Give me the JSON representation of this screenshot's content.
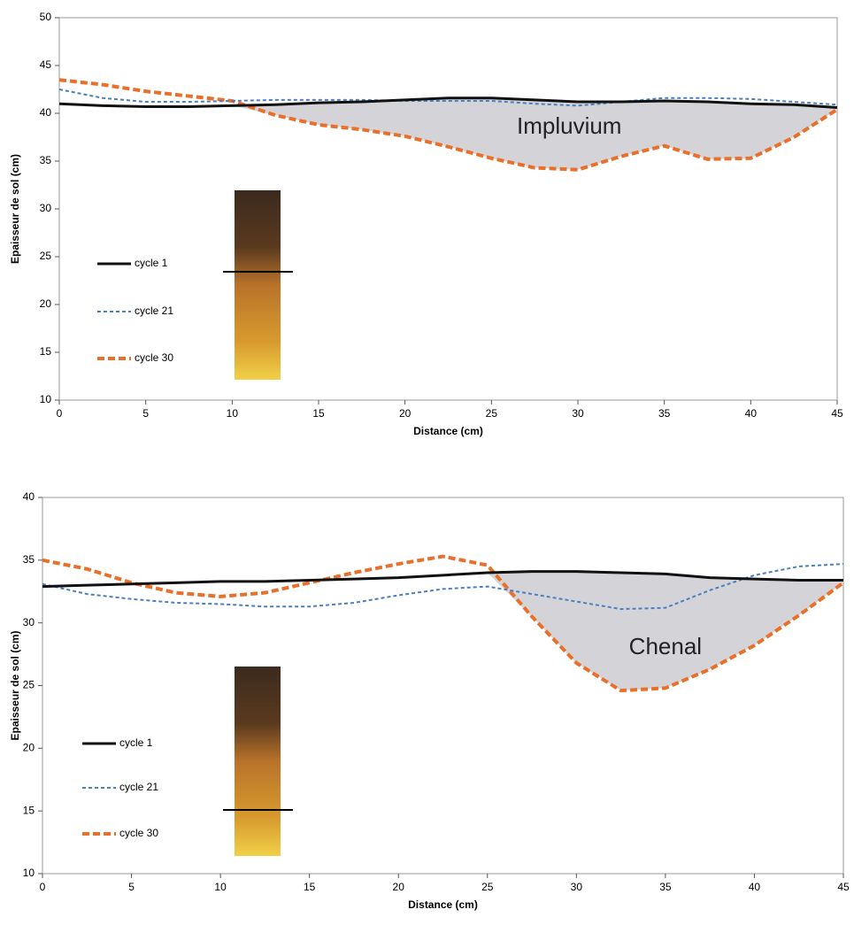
{
  "chart_data": [
    {
      "type": "line",
      "ylabel": "Epaisseur de sol (cm)",
      "xlabel": "Distance (cm)",
      "x": [
        0,
        2.5,
        5,
        7.5,
        10,
        12.5,
        15,
        17.5,
        20,
        22.5,
        25,
        27.5,
        30,
        32.5,
        35,
        37.5,
        40,
        42.5,
        45
      ],
      "series": [
        {
          "name": "cycle 1",
          "color": "#111111",
          "style": "solid",
          "values": [
            41,
            40.8,
            40.7,
            40.7,
            40.8,
            40.9,
            41.1,
            41.2,
            41.4,
            41.6,
            41.6,
            41.4,
            41.2,
            41.2,
            41.3,
            41.2,
            41,
            40.9,
            40.6
          ]
        },
        {
          "name": "cycle 21",
          "color": "#4a7fc1",
          "style": "dotted",
          "values": [
            42.5,
            41.6,
            41.2,
            41.2,
            41.3,
            41.4,
            41.4,
            41.4,
            41.3,
            41.3,
            41.3,
            41,
            40.8,
            41.2,
            41.6,
            41.6,
            41.5,
            41.2,
            40.9
          ]
        },
        {
          "name": "cycle 30",
          "color": "#e8702a",
          "style": "dashed",
          "values": [
            43.5,
            43,
            42.3,
            41.8,
            41.3,
            39.8,
            38.8,
            38.3,
            37.6,
            36.5,
            35.3,
            34.3,
            34.1,
            35.5,
            36.6,
            35.2,
            35.3,
            37.5,
            40.4
          ]
        }
      ],
      "annotation": "Impluvium",
      "xlim": [
        0,
        45
      ],
      "xticks": [
        0,
        5,
        10,
        15,
        20,
        25,
        30,
        35,
        40,
        45
      ],
      "ylim": [
        10,
        50
      ],
      "yticks": [
        10,
        15,
        20,
        25,
        30,
        35,
        40,
        45,
        50
      ],
      "legend": "left"
    },
    {
      "type": "line",
      "ylabel": "Epaisseur de sol (cm)",
      "xlabel": "Distance (cm)",
      "x": [
        0,
        2.5,
        5,
        7.5,
        10,
        12.5,
        15,
        17.5,
        20,
        22.5,
        25,
        27.5,
        30,
        32.5,
        35,
        37.5,
        40,
        42.5,
        45
      ],
      "series": [
        {
          "name": "cycle 1",
          "color": "#111111",
          "style": "solid",
          "values": [
            32.9,
            33,
            33.1,
            33.2,
            33.3,
            33.3,
            33.4,
            33.5,
            33.6,
            33.8,
            34,
            34.1,
            34.1,
            34,
            33.9,
            33.6,
            33.5,
            33.4,
            33.4
          ]
        },
        {
          "name": "cycle 21",
          "color": "#4a7fc1",
          "style": "dotted",
          "values": [
            33.1,
            32.3,
            31.9,
            31.6,
            31.5,
            31.3,
            31.3,
            31.6,
            32.2,
            32.7,
            32.9,
            32.3,
            31.7,
            31.1,
            31.2,
            32.6,
            33.8,
            34.5,
            34.7
          ]
        },
        {
          "name": "cycle 30",
          "color": "#e8702a",
          "style": "dashed",
          "values": [
            35,
            34.3,
            33.2,
            32.4,
            32.1,
            32.4,
            33.2,
            34,
            34.7,
            35.3,
            34.6,
            30.5,
            26.8,
            24.6,
            24.8,
            26.3,
            28.2,
            30.6,
            33.2
          ]
        }
      ],
      "annotation": "Chenal",
      "xlim": [
        0,
        45
      ],
      "xticks": [
        0,
        5,
        10,
        15,
        20,
        25,
        30,
        35,
        40,
        45
      ],
      "ylim": [
        10,
        40
      ],
      "yticks": [
        10,
        15,
        20,
        25,
        30,
        35,
        40
      ],
      "legend": "left"
    }
  ]
}
